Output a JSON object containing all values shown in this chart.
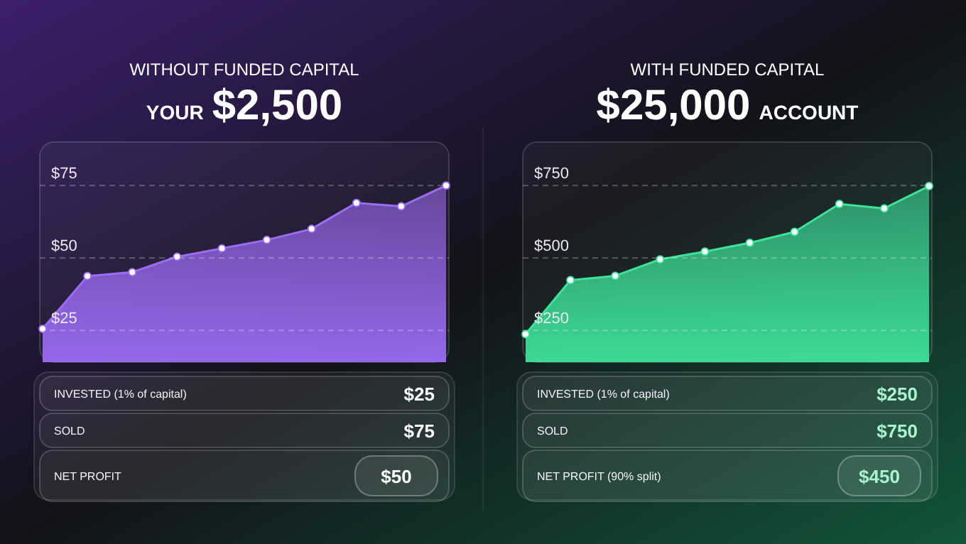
{
  "chart_data": [
    {
      "type": "area",
      "title": "WITHOUT FUNDED CAPITAL",
      "subtitle": "YOUR $2,500",
      "categories": [
        null,
        null,
        null,
        null,
        null,
        null,
        null,
        null,
        null,
        null
      ],
      "series": [
        {
          "color": "#9b6cf5",
          "values": [
            25.5,
            43.7,
            45.1,
            50.4,
            53.3,
            56.2,
            60,
            69,
            67.8,
            75
          ]
        }
      ],
      "ylim": [
        14,
        90
      ],
      "yticks": [
        {
          "value": 25,
          "label": "$25"
        },
        {
          "value": 50,
          "label": "$50"
        },
        {
          "value": 75,
          "label": "$75"
        }
      ],
      "grid": "y",
      "marker": "circle",
      "tick_labels": "y",
      "annotations": [
        "INVESTED (1% of capital)",
        "$25",
        "SOLD",
        "$75",
        "NET PROFIT",
        "$50"
      ]
    },
    {
      "type": "area",
      "title": "WITH FUNDED CAPITAL",
      "subtitle": "$25,000 ACCOUNT",
      "categories": [
        null,
        null,
        null,
        null,
        null,
        null,
        null,
        null,
        null,
        null
      ],
      "series": [
        {
          "color": "#3ee39a",
          "values": [
            237,
            423,
            438,
            495,
            522,
            552,
            590,
            686,
            671,
            748
          ]
        }
      ],
      "ylim": [
        140,
        900
      ],
      "yticks": [
        {
          "value": 250,
          "label": "$250"
        },
        {
          "value": 500,
          "label": "$500"
        },
        {
          "value": 750,
          "label": "$750"
        }
      ],
      "grid": "y",
      "marker": "circle",
      "tick_labels": "y",
      "annotations": [
        "INVESTED (1% of capital)",
        "$250",
        "SOLD",
        "$750",
        "NET PROFIT (90% split)",
        "$450"
      ]
    }
  ]
}
